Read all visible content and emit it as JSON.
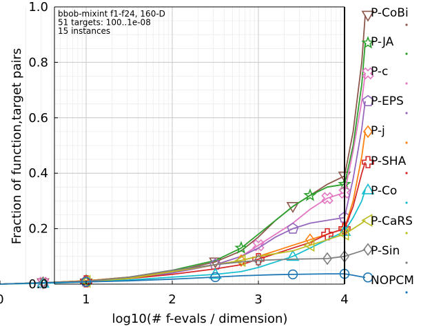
{
  "chart_data": {
    "type": "line",
    "xlabel": "log10(# f-evals / dimension)",
    "ylabel": "Fraction of function,target pairs",
    "xlim": [
      0,
      4.35
    ],
    "ylim": [
      0,
      1.0
    ],
    "xticks": [
      "0",
      "1",
      "2",
      "3",
      "4"
    ],
    "yticks": [
      "0.0",
      "0.2",
      "0.4",
      "0.6",
      "0.8",
      "1.0"
    ],
    "grid": true,
    "annotations": [
      "bbob-mixint f1-f24, 160-D",
      "51 targets: 100..1e-08",
      "15 instances"
    ],
    "budget_line_x": 4.0,
    "legend_placement": "right",
    "series": [
      {
        "name": "P-CoBi",
        "color": "#8c564b",
        "marker": "tri-down",
        "x": [
          0.0,
          0.5,
          1.0,
          1.5,
          2.0,
          2.5,
          2.8,
          3.0,
          3.2,
          3.4,
          3.6,
          3.8,
          4.0,
          4.1,
          4.2,
          4.24
        ],
        "y": [
          0.0,
          0.005,
          0.012,
          0.025,
          0.045,
          0.08,
          0.12,
          0.17,
          0.23,
          0.28,
          0.32,
          0.36,
          0.39,
          0.55,
          0.8,
          0.97
        ]
      },
      {
        "name": "P-JA",
        "color": "#2ca02c",
        "marker": "star",
        "x": [
          0.0,
          0.5,
          1.0,
          1.5,
          2.0,
          2.5,
          2.8,
          3.0,
          3.2,
          3.4,
          3.6,
          3.8,
          4.0,
          4.1,
          4.2,
          4.24
        ],
        "y": [
          0.0,
          0.005,
          0.012,
          0.025,
          0.05,
          0.085,
          0.13,
          0.18,
          0.23,
          0.28,
          0.32,
          0.35,
          0.36,
          0.5,
          0.72,
          0.87
        ]
      },
      {
        "name": "P-c",
        "color": "#e377c2",
        "marker": "cross",
        "x": [
          0.0,
          0.5,
          1.0,
          1.5,
          2.0,
          2.5,
          2.8,
          3.0,
          3.2,
          3.4,
          3.6,
          3.8,
          4.0,
          4.1,
          4.2,
          4.24
        ],
        "y": [
          0.0,
          0.005,
          0.01,
          0.02,
          0.04,
          0.07,
          0.1,
          0.14,
          0.18,
          0.22,
          0.27,
          0.31,
          0.33,
          0.48,
          0.66,
          0.76
        ]
      },
      {
        "name": "P-EPS",
        "color": "#9467bd",
        "marker": "pentagon",
        "x": [
          0.0,
          0.5,
          1.0,
          1.5,
          2.0,
          2.5,
          2.8,
          3.0,
          3.2,
          3.4,
          3.6,
          3.8,
          4.0,
          4.1,
          4.2,
          4.24
        ],
        "y": [
          0.0,
          0.005,
          0.01,
          0.02,
          0.04,
          0.07,
          0.1,
          0.13,
          0.17,
          0.2,
          0.22,
          0.23,
          0.24,
          0.38,
          0.56,
          0.66
        ]
      },
      {
        "name": "P-j",
        "color": "#ff7f0e",
        "marker": "diamond",
        "x": [
          0.0,
          0.5,
          1.0,
          1.5,
          2.0,
          2.5,
          2.8,
          3.0,
          3.2,
          3.4,
          3.6,
          3.8,
          4.0,
          4.1,
          4.2,
          4.24
        ],
        "y": [
          0.0,
          0.005,
          0.012,
          0.025,
          0.045,
          0.07,
          0.085,
          0.1,
          0.12,
          0.14,
          0.16,
          0.18,
          0.2,
          0.3,
          0.46,
          0.55
        ]
      },
      {
        "name": "P-SHA",
        "color": "#d62728",
        "marker": "plus",
        "x": [
          0.0,
          0.5,
          1.0,
          1.5,
          2.0,
          2.5,
          2.8,
          3.0,
          3.2,
          3.4,
          3.6,
          3.8,
          4.0,
          4.1,
          4.2,
          4.24
        ],
        "y": [
          0.0,
          0.005,
          0.01,
          0.02,
          0.035,
          0.055,
          0.07,
          0.09,
          0.11,
          0.13,
          0.15,
          0.18,
          0.2,
          0.28,
          0.4,
          0.44
        ]
      },
      {
        "name": "P-Co",
        "color": "#17becf",
        "marker": "tri-up",
        "x": [
          0.0,
          0.5,
          1.0,
          1.5,
          2.0,
          2.5,
          2.8,
          3.0,
          3.2,
          3.4,
          3.6,
          3.8,
          4.0,
          4.1,
          4.2,
          4.24
        ],
        "y": [
          0.0,
          0.003,
          0.008,
          0.015,
          0.025,
          0.035,
          0.045,
          0.06,
          0.08,
          0.1,
          0.13,
          0.16,
          0.19,
          0.24,
          0.3,
          0.34
        ]
      },
      {
        "name": "P-CaRS",
        "color": "#bcbd22",
        "marker": "tri-left",
        "x": [
          0.0,
          0.5,
          1.0,
          1.5,
          2.0,
          2.5,
          2.8,
          3.0,
          3.2,
          3.4,
          3.6,
          3.8,
          4.0,
          4.1,
          4.2,
          4.24
        ],
        "y": [
          0.0,
          0.005,
          0.01,
          0.02,
          0.045,
          0.07,
          0.085,
          0.1,
          0.11,
          0.12,
          0.14,
          0.16,
          0.18,
          0.2,
          0.22,
          0.23
        ]
      },
      {
        "name": "P-Sin",
        "color": "#7f7f7f",
        "marker": "diamond",
        "x": [
          0.0,
          0.5,
          1.0,
          1.5,
          2.0,
          2.5,
          2.8,
          3.0,
          3.2,
          3.4,
          3.6,
          3.8,
          4.0,
          4.1,
          4.2,
          4.24
        ],
        "y": [
          0.0,
          0.005,
          0.01,
          0.025,
          0.05,
          0.07,
          0.08,
          0.085,
          0.088,
          0.09,
          0.091,
          0.092,
          0.1,
          0.11,
          0.12,
          0.125
        ]
      },
      {
        "name": "NOPCM",
        "color": "#1f77b4",
        "marker": "circle",
        "x": [
          0.0,
          0.5,
          1.0,
          1.5,
          2.0,
          2.5,
          2.8,
          3.0,
          3.2,
          3.4,
          3.6,
          3.8,
          4.0,
          4.1,
          4.2,
          4.24
        ],
        "y": [
          0.0,
          0.005,
          0.008,
          0.012,
          0.018,
          0.025,
          0.03,
          0.032,
          0.034,
          0.035,
          0.036,
          0.037,
          0.037,
          0.032,
          0.026,
          0.024
        ]
      }
    ]
  }
}
